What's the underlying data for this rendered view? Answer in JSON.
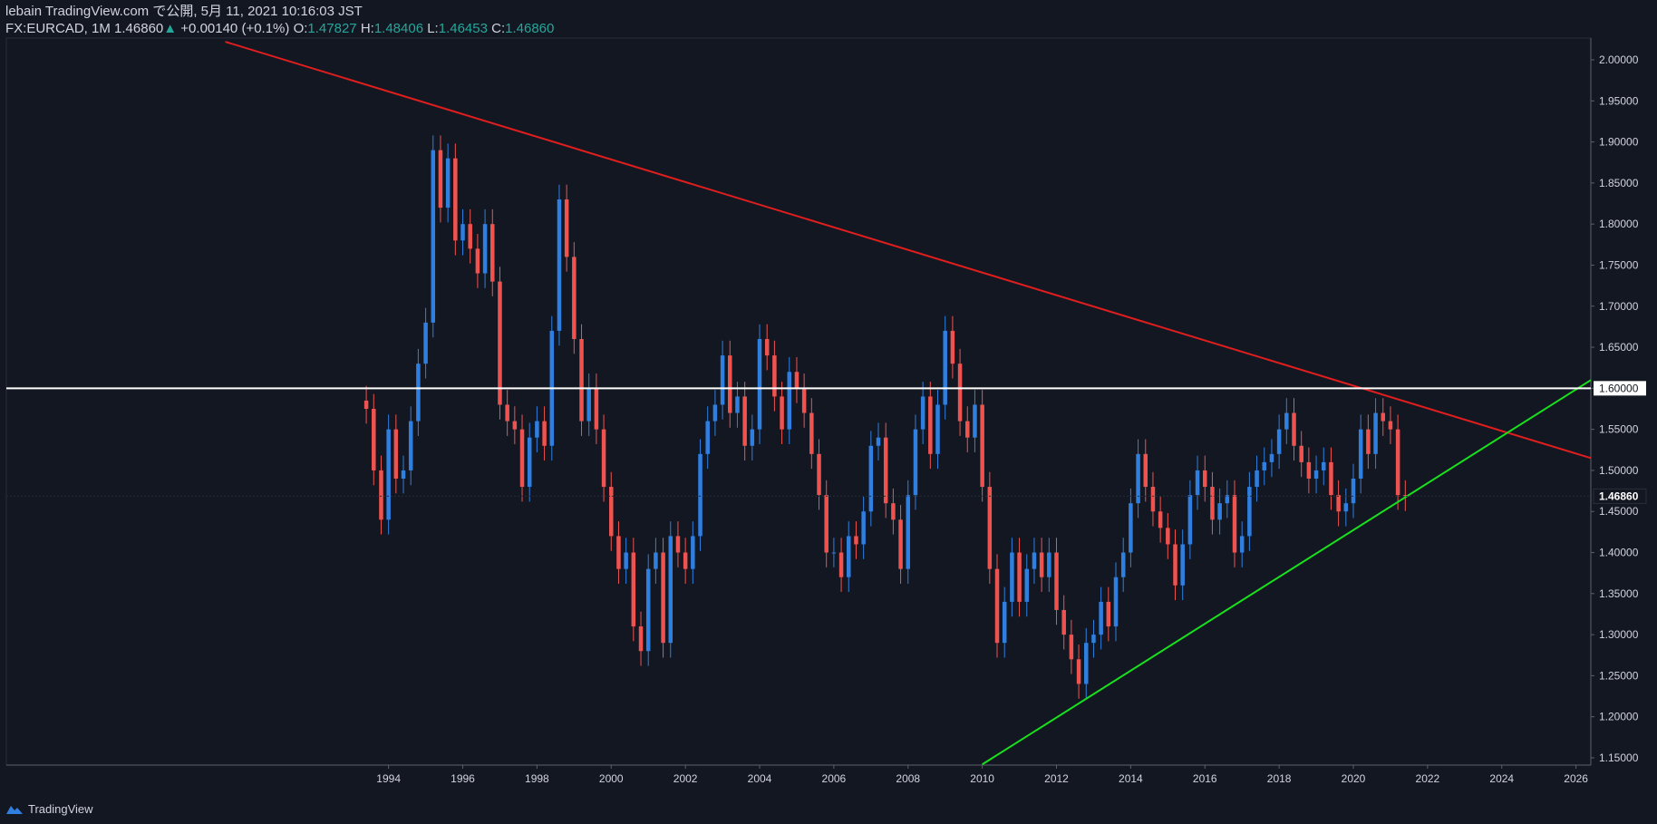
{
  "header": {
    "line1": "lebain TradingView.com で公開, 5月 11, 2021 10:16:03 JST",
    "symbol": "FX:EURCAD, 1M",
    "last": "1.46860",
    "change_arrow": "▲",
    "change": "+0.00140 (+0.1%)",
    "o_label": "O:",
    "o_val": "1.47827",
    "h_label": "H:",
    "h_val": "1.48406",
    "l_label": "L:",
    "l_val": "1.46453",
    "c_label": "C:",
    "c_val": "1.46860"
  },
  "footer": {
    "brand": "TradingView",
    "icon": "tradingview-cloud-icon"
  },
  "colors": {
    "background": "#131722",
    "up": "#2f7fe0",
    "down": "#ef5350",
    "resistance_line": "#e01e1e",
    "support_line": "#19e01e",
    "horizontal_line": "#ffffff",
    "axis_text": "#d1d4dc"
  },
  "chart_data": {
    "type": "candlestick",
    "symbol": "FX:EURCAD",
    "interval": "1M",
    "y_axis": {
      "ylim": [
        1.15,
        2.0
      ],
      "ticks": [
        "2.00000",
        "1.95000",
        "1.90000",
        "1.85000",
        "1.80000",
        "1.75000",
        "1.70000",
        "1.65000",
        "1.60000",
        "1.55000",
        "1.50000",
        "1.45000",
        "1.40000",
        "1.35000",
        "1.30000",
        "1.25000",
        "1.20000",
        "1.15000"
      ],
      "price_label": "1.46860",
      "horizontal_level_label": "1.60000"
    },
    "x_axis": {
      "xlim": [
        1983.7,
        2026.4
      ],
      "ticks": [
        "1994",
        "1996",
        "1998",
        "2000",
        "2002",
        "2004",
        "2006",
        "2008",
        "2010",
        "2012",
        "2014",
        "2016",
        "2018",
        "2020",
        "2022",
        "2024",
        "2026"
      ]
    },
    "lines": [
      {
        "kind": "trendline",
        "color": "resistance",
        "points": [
          [
            1989.6,
            2.022
          ],
          [
            2026.4,
            1.515
          ]
        ]
      },
      {
        "kind": "trendline",
        "color": "support",
        "points": [
          [
            2010.0,
            1.142
          ],
          [
            2026.4,
            1.61
          ]
        ]
      },
      {
        "kind": "horizontal",
        "color": "horizontal",
        "y": 1.6
      }
    ],
    "closes": [
      [
        1993.4,
        1.575
      ],
      [
        1993.6,
        1.5
      ],
      [
        1993.8,
        1.44
      ],
      [
        1994.0,
        1.55
      ],
      [
        1994.2,
        1.49
      ],
      [
        1994.4,
        1.5
      ],
      [
        1994.6,
        1.56
      ],
      [
        1994.8,
        1.63
      ],
      [
        1995.0,
        1.68
      ],
      [
        1995.2,
        1.89
      ],
      [
        1995.4,
        1.82
      ],
      [
        1995.6,
        1.88
      ],
      [
        1995.8,
        1.78
      ],
      [
        1996.0,
        1.8
      ],
      [
        1996.2,
        1.77
      ],
      [
        1996.4,
        1.74
      ],
      [
        1996.6,
        1.8
      ],
      [
        1996.8,
        1.73
      ],
      [
        1997.0,
        1.58
      ],
      [
        1997.2,
        1.56
      ],
      [
        1997.4,
        1.55
      ],
      [
        1997.6,
        1.48
      ],
      [
        1997.8,
        1.54
      ],
      [
        1998.0,
        1.56
      ],
      [
        1998.2,
        1.53
      ],
      [
        1998.4,
        1.67
      ],
      [
        1998.6,
        1.83
      ],
      [
        1998.8,
        1.76
      ],
      [
        1999.0,
        1.66
      ],
      [
        1999.2,
        1.56
      ],
      [
        1999.4,
        1.6
      ],
      [
        1999.6,
        1.55
      ],
      [
        1999.8,
        1.48
      ],
      [
        2000.0,
        1.42
      ],
      [
        2000.2,
        1.38
      ],
      [
        2000.4,
        1.4
      ],
      [
        2000.6,
        1.31
      ],
      [
        2000.8,
        1.28
      ],
      [
        2001.0,
        1.38
      ],
      [
        2001.2,
        1.4
      ],
      [
        2001.4,
        1.29
      ],
      [
        2001.6,
        1.42
      ],
      [
        2001.8,
        1.4
      ],
      [
        2002.0,
        1.38
      ],
      [
        2002.2,
        1.42
      ],
      [
        2002.4,
        1.52
      ],
      [
        2002.6,
        1.56
      ],
      [
        2002.8,
        1.58
      ],
      [
        2003.0,
        1.64
      ],
      [
        2003.2,
        1.57
      ],
      [
        2003.4,
        1.59
      ],
      [
        2003.6,
        1.53
      ],
      [
        2003.8,
        1.55
      ],
      [
        2004.0,
        1.66
      ],
      [
        2004.2,
        1.64
      ],
      [
        2004.4,
        1.59
      ],
      [
        2004.6,
        1.55
      ],
      [
        2004.8,
        1.62
      ],
      [
        2005.0,
        1.6
      ],
      [
        2005.2,
        1.57
      ],
      [
        2005.4,
        1.52
      ],
      [
        2005.6,
        1.47
      ],
      [
        2005.8,
        1.4
      ],
      [
        2006.0,
        1.4
      ],
      [
        2006.2,
        1.37
      ],
      [
        2006.4,
        1.42
      ],
      [
        2006.6,
        1.41
      ],
      [
        2006.8,
        1.45
      ],
      [
        2007.0,
        1.53
      ],
      [
        2007.2,
        1.54
      ],
      [
        2007.4,
        1.46
      ],
      [
        2007.6,
        1.44
      ],
      [
        2007.8,
        1.38
      ],
      [
        2008.0,
        1.47
      ],
      [
        2008.2,
        1.55
      ],
      [
        2008.4,
        1.59
      ],
      [
        2008.6,
        1.52
      ],
      [
        2008.8,
        1.58
      ],
      [
        2009.0,
        1.67
      ],
      [
        2009.2,
        1.63
      ],
      [
        2009.4,
        1.56
      ],
      [
        2009.6,
        1.54
      ],
      [
        2009.8,
        1.58
      ],
      [
        2010.0,
        1.48
      ],
      [
        2010.2,
        1.38
      ],
      [
        2010.4,
        1.29
      ],
      [
        2010.6,
        1.34
      ],
      [
        2010.8,
        1.4
      ],
      [
        2011.0,
        1.34
      ],
      [
        2011.2,
        1.38
      ],
      [
        2011.4,
        1.4
      ],
      [
        2011.6,
        1.37
      ],
      [
        2011.8,
        1.4
      ],
      [
        2012.0,
        1.33
      ],
      [
        2012.2,
        1.3
      ],
      [
        2012.4,
        1.27
      ],
      [
        2012.6,
        1.24
      ],
      [
        2012.8,
        1.29
      ],
      [
        2013.0,
        1.3
      ],
      [
        2013.2,
        1.34
      ],
      [
        2013.4,
        1.31
      ],
      [
        2013.6,
        1.37
      ],
      [
        2013.8,
        1.4
      ],
      [
        2014.0,
        1.46
      ],
      [
        2014.2,
        1.52
      ],
      [
        2014.4,
        1.48
      ],
      [
        2014.6,
        1.45
      ],
      [
        2014.8,
        1.43
      ],
      [
        2015.0,
        1.41
      ],
      [
        2015.2,
        1.36
      ],
      [
        2015.4,
        1.41
      ],
      [
        2015.6,
        1.47
      ],
      [
        2015.8,
        1.5
      ],
      [
        2016.0,
        1.48
      ],
      [
        2016.2,
        1.44
      ],
      [
        2016.4,
        1.46
      ],
      [
        2016.6,
        1.47
      ],
      [
        2016.8,
        1.4
      ],
      [
        2017.0,
        1.42
      ],
      [
        2017.2,
        1.48
      ],
      [
        2017.4,
        1.5
      ],
      [
        2017.6,
        1.51
      ],
      [
        2017.8,
        1.52
      ],
      [
        2018.0,
        1.55
      ],
      [
        2018.2,
        1.57
      ],
      [
        2018.4,
        1.53
      ],
      [
        2018.6,
        1.51
      ],
      [
        2018.8,
        1.49
      ],
      [
        2019.0,
        1.5
      ],
      [
        2019.2,
        1.51
      ],
      [
        2019.4,
        1.47
      ],
      [
        2019.6,
        1.45
      ],
      [
        2019.8,
        1.46
      ],
      [
        2020.0,
        1.49
      ],
      [
        2020.2,
        1.55
      ],
      [
        2020.4,
        1.52
      ],
      [
        2020.6,
        1.57
      ],
      [
        2020.8,
        1.56
      ],
      [
        2021.0,
        1.55
      ],
      [
        2021.2,
        1.47
      ],
      [
        2021.4,
        1.4686
      ]
    ]
  }
}
